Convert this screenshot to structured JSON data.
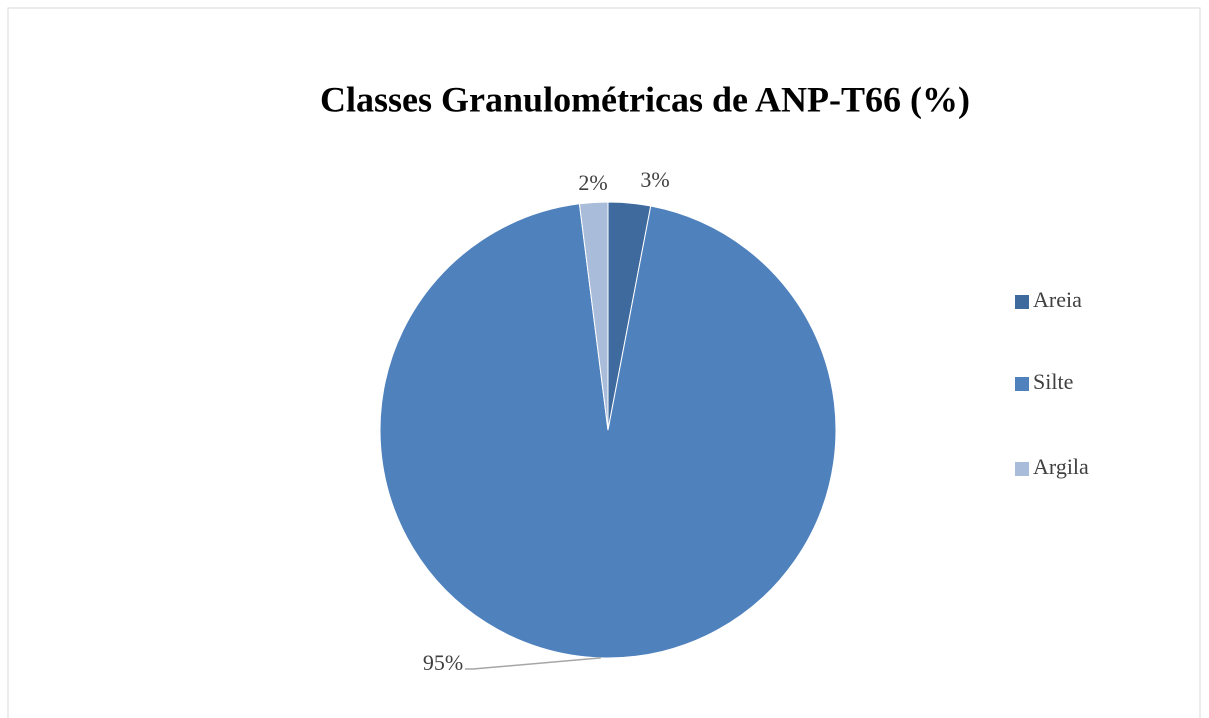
{
  "chart_data": {
    "type": "pie",
    "title": "Classes Granulométricas de ANP-T66 (%)",
    "categories": [
      "Areia",
      "Silte",
      "Argila"
    ],
    "values": [
      3,
      95,
      2
    ],
    "value_labels": [
      "3%",
      "95%",
      "2%"
    ],
    "colors": [
      "#3f6a9e",
      "#4f81bd",
      "#a9bcd9"
    ],
    "legend": "right"
  }
}
